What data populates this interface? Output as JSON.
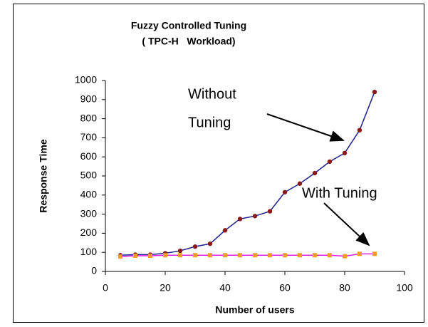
{
  "chart_data": {
    "type": "line",
    "title": [
      "Fuzzy Controlled Tuning",
      "( TPC-H   Workload)"
    ],
    "xlabel": "Number of users",
    "ylabel": "Response Time",
    "x": [
      5,
      10,
      15,
      20,
      25,
      30,
      35,
      40,
      45,
      50,
      55,
      60,
      65,
      70,
      75,
      80,
      85,
      90
    ],
    "series": [
      {
        "color": "#1f1f8f",
        "marker_color": "#8b1a1a",
        "marker": "circle",
        "values": [
          85,
          88,
          88,
          95,
          108,
          130,
          145,
          215,
          275,
          290,
          315,
          415,
          460,
          515,
          575,
          620,
          740,
          940
        ]
      },
      {
        "color": "#e020e0",
        "marker_color": "#f39c2b",
        "marker": "square",
        "values": [
          78,
          82,
          82,
          85,
          85,
          85,
          85,
          85,
          85,
          85,
          85,
          85,
          85,
          85,
          85,
          80,
          92,
          92
        ]
      }
    ],
    "annotations": [
      {
        "lines": [
          "Without",
          "Tuning"
        ]
      },
      {
        "lines": [
          "With Tuning"
        ]
      }
    ],
    "xlim": [
      0,
      100
    ],
    "xticks": [
      0,
      20,
      40,
      60,
      80,
      100
    ],
    "ylim": [
      0,
      1000
    ],
    "yticks": [
      0,
      100,
      200,
      300,
      400,
      500,
      600,
      700,
      800,
      900,
      1000
    ],
    "grid": false
  }
}
